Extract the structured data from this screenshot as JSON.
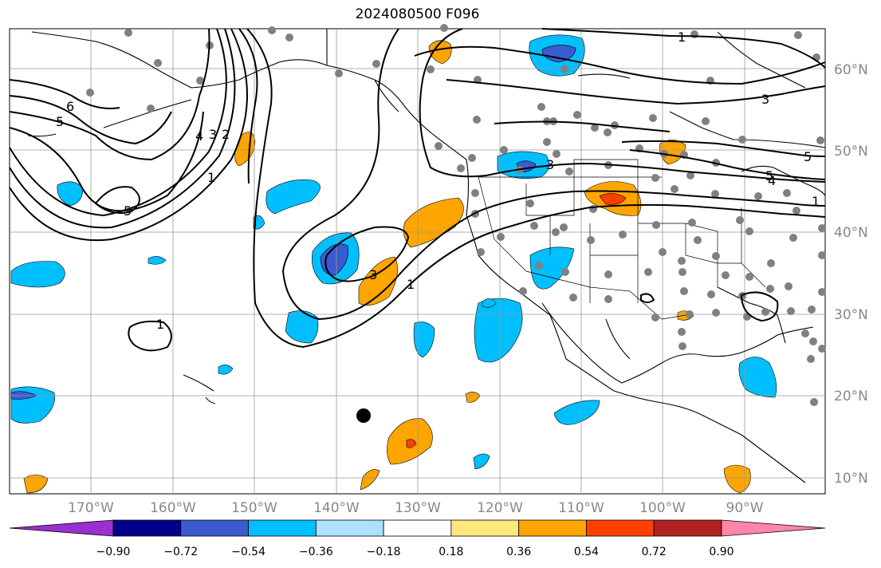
{
  "title": "2024080500 F096",
  "lat_labels": [
    "60°N",
    "50°N",
    "40°N",
    "30°N",
    "20°N",
    "10°N"
  ],
  "lon_labels": [
    "170°W",
    "160°W",
    "150°W",
    "140°W",
    "130°W",
    "120°W",
    "110°W",
    "100°W",
    "90°W"
  ],
  "contour_labels": [
    "1",
    "3",
    "5",
    "6",
    "5",
    "4",
    "3",
    "2",
    "1",
    "5",
    "3",
    "1",
    "1",
    "5",
    "4",
    "1",
    "3"
  ],
  "colorbar": {
    "ticks": [
      "−0.90",
      "−0.72",
      "−0.54",
      "−0.36",
      "−0.18",
      "0.18",
      "0.36",
      "0.54",
      "0.72",
      "0.90"
    ],
    "colors": [
      "#9b30d0",
      "#00008b",
      "#3a5bd0",
      "#00bfff",
      "#aee0ff",
      "#ffffff",
      "#ffe97f",
      "#ffa500",
      "#ff3f00",
      "#b22222",
      "#ff85aa"
    ]
  }
}
